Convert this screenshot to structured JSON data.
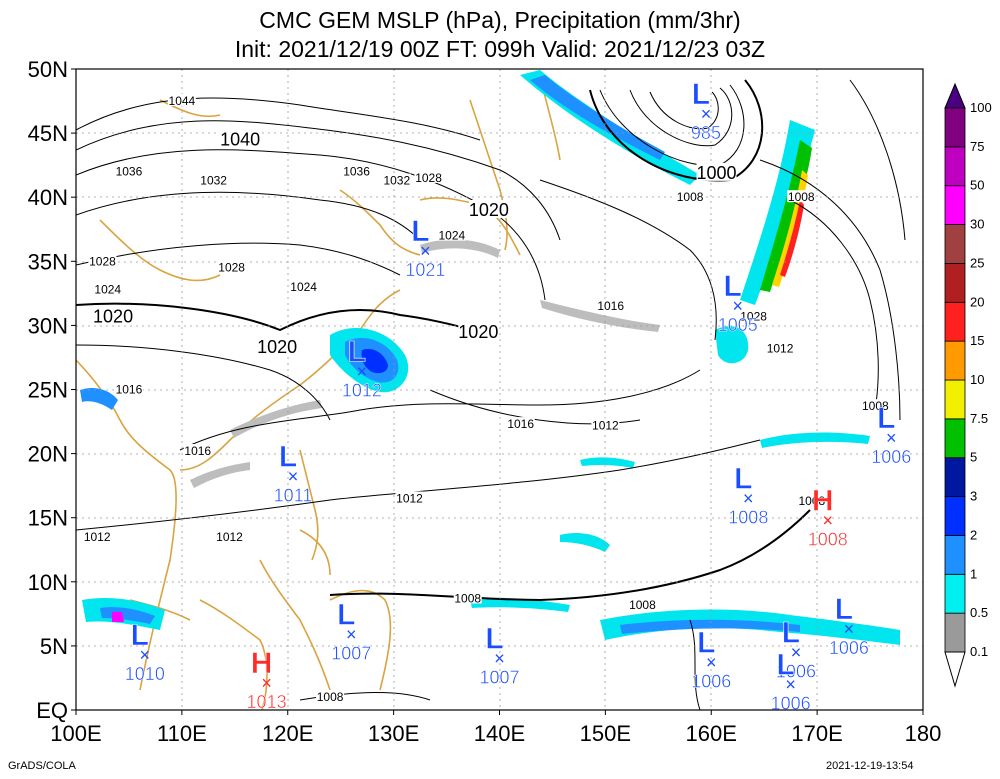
{
  "header": {
    "title": "CMC GEM MSLP (hPa), Precipitation (mm/3hr)",
    "subtitle": "Init: 2021/12/19 00Z  FT: 099h  Valid: 2021/12/23 03Z"
  },
  "footer": {
    "left": "GrADS/COLA",
    "right": "2021-12-19-13:54"
  },
  "map": {
    "lon_range": [
      100,
      180
    ],
    "lat_range": [
      0,
      50
    ],
    "lon_ticks": [
      "100E",
      "110E",
      "120E",
      "130E",
      "140E",
      "150E",
      "160E",
      "170E",
      "180"
    ],
    "lat_ticks": [
      "EQ",
      "5N",
      "10N",
      "15N",
      "20N",
      "25N",
      "30N",
      "35N",
      "40N",
      "45N",
      "50N"
    ],
    "grid": true
  },
  "colorbar": {
    "levels": [
      "0.1",
      "0.5",
      "1",
      "2",
      "3",
      "5",
      "7.5",
      "10",
      "15",
      "20",
      "25",
      "30",
      "50",
      "75",
      "100"
    ],
    "colors": [
      "#cfcfcf",
      "#9a9a9a",
      "#00f0f0",
      "#1e90ff",
      "#0030ff",
      "#0018a0",
      "#00c000",
      "#f0f000",
      "#ff9a00",
      "#ff2020",
      "#b02020",
      "#a04040",
      "#ff00ff",
      "#c000c0",
      "#800080",
      "#4b0082"
    ]
  },
  "pressure_centers": [
    {
      "type": "L",
      "value": "985",
      "lon": 159.5,
      "lat": 46.5
    },
    {
      "type": "L",
      "value": "1021",
      "lon": 133,
      "lat": 35.8
    },
    {
      "type": "L",
      "value": "1005",
      "lon": 162.5,
      "lat": 31.5
    },
    {
      "type": "L",
      "value": "1012",
      "lon": 127,
      "lat": 26.4
    },
    {
      "type": "L",
      "value": "1006",
      "lon": 177,
      "lat": 21.2
    },
    {
      "type": "L",
      "value": "1011",
      "lon": 120.5,
      "lat": 18.2
    },
    {
      "type": "L",
      "value": "1008",
      "lon": 163.5,
      "lat": 16.5
    },
    {
      "type": "H",
      "value": "1008",
      "lon": 171,
      "lat": 14.8
    },
    {
      "type": "L",
      "value": "1007",
      "lon": 126,
      "lat": 5.9
    },
    {
      "type": "L",
      "value": "1010",
      "lon": 106.5,
      "lat": 4.3
    },
    {
      "type": "L",
      "value": "1007",
      "lon": 140,
      "lat": 4
    },
    {
      "type": "L",
      "value": "1006",
      "lon": 160,
      "lat": 3.7
    },
    {
      "type": "L",
      "value": "1006",
      "lon": 168,
      "lat": 4.5
    },
    {
      "type": "L",
      "value": "1006",
      "lon": 173,
      "lat": 6.3
    },
    {
      "type": "H",
      "value": "1013",
      "lon": 118,
      "lat": 2.1
    },
    {
      "type": "L",
      "value": "1006",
      "lon": 167.5,
      "lat": 2
    }
  ],
  "isobar_labels": [
    {
      "text": "1044",
      "lon": 110,
      "lat": 47.5,
      "size": 12
    },
    {
      "text": "1040",
      "lon": 115.5,
      "lat": 44.5,
      "size": 18
    },
    {
      "text": "1036",
      "lon": 105,
      "lat": 42,
      "size": 12
    },
    {
      "text": "1032",
      "lon": 113,
      "lat": 41.3,
      "size": 12
    },
    {
      "text": "1036",
      "lon": 126.5,
      "lat": 42,
      "size": 12
    },
    {
      "text": "1032",
      "lon": 130.3,
      "lat": 41.3,
      "size": 12
    },
    {
      "text": "1028",
      "lon": 133.3,
      "lat": 41.5,
      "size": 12
    },
    {
      "text": "1024",
      "lon": 135.5,
      "lat": 37,
      "size": 12
    },
    {
      "text": "1020",
      "lon": 139,
      "lat": 39,
      "size": 18
    },
    {
      "text": "1028",
      "lon": 102.5,
      "lat": 35,
      "size": 12
    },
    {
      "text": "1028",
      "lon": 114.7,
      "lat": 34.5,
      "size": 12
    },
    {
      "text": "1024",
      "lon": 103,
      "lat": 32.8,
      "size": 12
    },
    {
      "text": "1024",
      "lon": 121.5,
      "lat": 33,
      "size": 12
    },
    {
      "text": "1020",
      "lon": 103.5,
      "lat": 30.7,
      "size": 18
    },
    {
      "text": "1020",
      "lon": 119,
      "lat": 28.3,
      "size": 18
    },
    {
      "text": "1020",
      "lon": 138,
      "lat": 29.5,
      "size": 18
    },
    {
      "text": "1016",
      "lon": 150.5,
      "lat": 31.5,
      "size": 12
    },
    {
      "text": "1016",
      "lon": 105,
      "lat": 25,
      "size": 12
    },
    {
      "text": "1016",
      "lon": 142,
      "lat": 22.3,
      "size": 12
    },
    {
      "text": "1012",
      "lon": 150,
      "lat": 22.2,
      "size": 12
    },
    {
      "text": "1012",
      "lon": 166.5,
      "lat": 28.2,
      "size": 12
    },
    {
      "text": "1016",
      "lon": 111.5,
      "lat": 20.2,
      "size": 12
    },
    {
      "text": "1012",
      "lon": 131.5,
      "lat": 16.5,
      "size": 12
    },
    {
      "text": "1012",
      "lon": 102,
      "lat": 13.5,
      "size": 12
    },
    {
      "text": "1012",
      "lon": 114.5,
      "lat": 13.5,
      "size": 12
    },
    {
      "text": "1008",
      "lon": 137,
      "lat": 8.7,
      "size": 12
    },
    {
      "text": "1008",
      "lon": 153.5,
      "lat": 8.2,
      "size": 12
    },
    {
      "text": "1008",
      "lon": 124,
      "lat": 1,
      "size": 12
    },
    {
      "text": "1008",
      "lon": 158,
      "lat": 40,
      "size": 12
    },
    {
      "text": "1000",
      "lon": 160.5,
      "lat": 41.9,
      "size": 18
    },
    {
      "text": "1008",
      "lon": 168.5,
      "lat": 40,
      "size": 12
    },
    {
      "text": "1028",
      "lon": 164,
      "lat": 30.7,
      "size": 12
    },
    {
      "text": "1008",
      "lon": 175.5,
      "lat": 23.7,
      "size": 12
    },
    {
      "text": "1008",
      "lon": 169.5,
      "lat": 16.3,
      "size": 12
    }
  ]
}
